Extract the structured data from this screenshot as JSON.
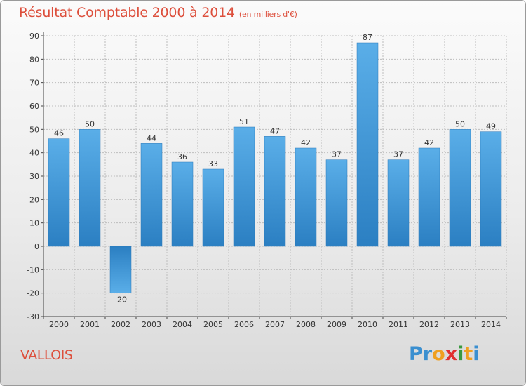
{
  "colors": {
    "title": "#dd4f3c",
    "bar_top": "#5aaee8",
    "bar_bottom": "#2b7fc2",
    "grid": "#bdbdbd",
    "axis": "#444444",
    "label": "#333333"
  },
  "chart_data": {
    "type": "bar",
    "title": "Résultat Comptable 2000 à 2014",
    "subtitle": "(en milliers d'€)",
    "categories": [
      "2000",
      "2001",
      "2002",
      "2003",
      "2004",
      "2005",
      "2006",
      "2007",
      "2008",
      "2009",
      "2010",
      "2011",
      "2012",
      "2013",
      "2014"
    ],
    "values": [
      46,
      50,
      -20,
      44,
      36,
      33,
      51,
      47,
      42,
      37,
      87,
      37,
      42,
      50,
      49
    ],
    "yticks": [
      90,
      80,
      70,
      60,
      50,
      40,
      30,
      20,
      10,
      0,
      -10,
      -20,
      -30
    ],
    "ylim": [
      -30,
      90
    ],
    "xlabel": "",
    "ylabel": "",
    "grid": true
  },
  "footer": {
    "commune": "VALLOIS",
    "logo_letters": [
      {
        "ch": "P",
        "color": "#3a8fd0"
      },
      {
        "ch": "r",
        "color": "#3a8fd0"
      },
      {
        "ch": "o",
        "color": "#f0a020"
      },
      {
        "ch": "x",
        "color": "#e03030"
      },
      {
        "ch": "i",
        "color": "#3a9a40"
      },
      {
        "ch": "t",
        "color": "#f0a020"
      },
      {
        "ch": "i",
        "color": "#3a8fd0"
      }
    ]
  }
}
